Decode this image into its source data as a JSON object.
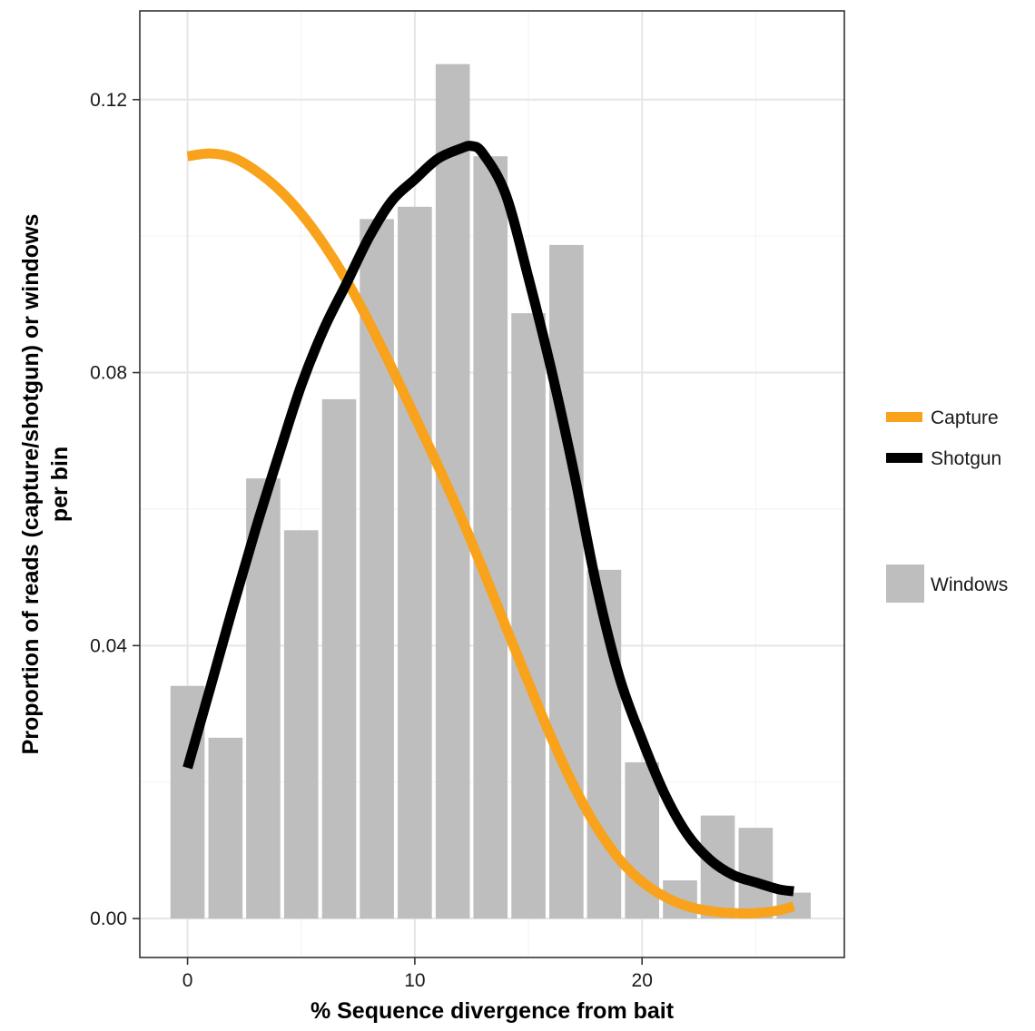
{
  "chart_data": {
    "type": "bar",
    "title": "",
    "xlabel": "% Sequence divergence from bait",
    "ylabel_lines": [
      "Proportion of reads (capture/shotgun) or windows",
      "per bin"
    ],
    "xlim": [
      -2.1,
      28.9
    ],
    "ylim": [
      -0.0057,
      0.133
    ],
    "x_ticks": [
      0,
      10,
      20
    ],
    "x_tick_labels": [
      "0",
      "10",
      "20"
    ],
    "x_minor_ticks": [
      5,
      15,
      25
    ],
    "y_ticks": [
      0.0,
      0.04,
      0.08,
      0.12
    ],
    "y_tick_labels": [
      "0.00",
      "0.04",
      "0.08",
      "0.12"
    ],
    "y_minor_ticks": [
      0.02,
      0.06,
      0.1
    ],
    "grid": true,
    "legend_position": "right",
    "bars": {
      "name": "Windows",
      "color": "#bebebe",
      "x": [
        0,
        1.67,
        3.33,
        5,
        6.67,
        8.33,
        10,
        11.67,
        13.33,
        15,
        16.67,
        18.33,
        20,
        21.67,
        23.33,
        25,
        26.67
      ],
      "values": [
        0.0341,
        0.0265,
        0.0645,
        0.0569,
        0.0761,
        0.1025,
        0.1043,
        0.1252,
        0.1117,
        0.0887,
        0.0987,
        0.0511,
        0.0229,
        0.0056,
        0.0151,
        0.0133,
        0.0038
      ]
    },
    "series": [
      {
        "name": "Capture",
        "color": "#f9a21b",
        "type": "line",
        "x": [
          0,
          1,
          2,
          3,
          4,
          5,
          6,
          7,
          8,
          9,
          10,
          11,
          12,
          13,
          14,
          15,
          16,
          17,
          18,
          19,
          20,
          21,
          22,
          23,
          24,
          25,
          26,
          26.67
        ],
        "values": [
          0.1117,
          0.1121,
          0.1115,
          0.1096,
          0.1069,
          0.1033,
          0.0988,
          0.0935,
          0.0873,
          0.0806,
          0.0736,
          0.0665,
          0.0591,
          0.0511,
          0.0428,
          0.0346,
          0.0266,
          0.0194,
          0.0134,
          0.0087,
          0.0054,
          0.0032,
          0.0018,
          0.0011,
          0.0008,
          0.0008,
          0.0012,
          0.0018
        ]
      },
      {
        "name": "Shotgun",
        "color": "#000000",
        "type": "line",
        "x": [
          0,
          1,
          2,
          3,
          4,
          5,
          6,
          7,
          8,
          9,
          10,
          11,
          12,
          12.5,
          13,
          14,
          15,
          16,
          17,
          18,
          19,
          20,
          21,
          22,
          23,
          24,
          25,
          26,
          26.67
        ],
        "values": [
          0.0221,
          0.0338,
          0.0457,
          0.0571,
          0.0678,
          0.0781,
          0.0864,
          0.0931,
          0.0999,
          0.1052,
          0.1083,
          0.1113,
          0.1128,
          0.1132,
          0.1121,
          0.1061,
          0.0939,
          0.0805,
          0.0654,
          0.0487,
          0.0354,
          0.0262,
          0.0182,
          0.0123,
          0.0086,
          0.0064,
          0.0053,
          0.0043,
          0.004
        ]
      }
    ],
    "legend_entries": [
      "Capture",
      "Shotgun",
      "Windows"
    ]
  }
}
